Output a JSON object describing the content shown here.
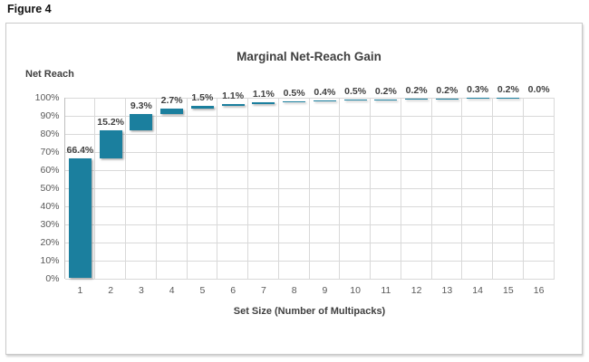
{
  "figure_label": "Figure 4",
  "chart_data": {
    "type": "bar",
    "subtype": "waterfall",
    "title": "Marginal Net-Reach Gain",
    "y_axis_label": "Net Reach",
    "xlabel": "Set Size (Number of Multipacks)",
    "categories": [
      "1",
      "2",
      "3",
      "4",
      "5",
      "6",
      "7",
      "8",
      "9",
      "10",
      "11",
      "12",
      "13",
      "14",
      "15",
      "16"
    ],
    "values": [
      66.4,
      15.2,
      9.3,
      2.7,
      1.5,
      1.1,
      1.1,
      0.5,
      0.4,
      0.5,
      0.2,
      0.2,
      0.2,
      0.3,
      0.2,
      0.0
    ],
    "cumulative": [
      66.4,
      81.6,
      90.9,
      93.6,
      95.1,
      96.2,
      97.3,
      97.8,
      98.2,
      98.7,
      98.9,
      99.1,
      99.3,
      99.6,
      99.8,
      99.8
    ],
    "data_labels": [
      "66.4%",
      "15.2%",
      "9.3%",
      "2.7%",
      "1.5%",
      "1.1%",
      "1.1%",
      "0.5%",
      "0.4%",
      "0.5%",
      "0.2%",
      "0.2%",
      "0.2%",
      "0.3%",
      "0.2%",
      "0.0%"
    ],
    "y_ticks": [
      "0%",
      "10%",
      "20%",
      "30%",
      "40%",
      "50%",
      "60%",
      "70%",
      "80%",
      "90%",
      "100%"
    ],
    "ylim": [
      0,
      100
    ],
    "grid": true,
    "legend": "none",
    "colors": {
      "bar": "#1b7f9e",
      "gridline": "#d9d9d9",
      "axis_line": "#bfbfbf",
      "tick_text": "#595959",
      "title_text": "#3f3f3f",
      "data_label_text": "#404040",
      "frame_border": "#c9c9c9"
    }
  }
}
